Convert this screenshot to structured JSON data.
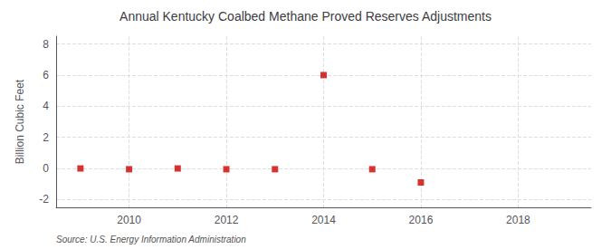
{
  "chart_data": {
    "type": "scatter",
    "title": "Annual Kentucky Coalbed Methane Proved Reserves Adjustments",
    "ylabel": "Billion Cubic Feet",
    "source": "Source: U.S. Energy Information Administration",
    "x": [
      2009,
      2010,
      2011,
      2012,
      2013,
      2014,
      2015,
      2016
    ],
    "values": [
      0.0,
      -0.05,
      0.0,
      -0.05,
      -0.05,
      6.0,
      -0.05,
      -0.9
    ],
    "color": "#cc0000",
    "marker": "square",
    "xlim": [
      2008.5,
      2019.5
    ],
    "ylim": [
      -2.5,
      8.5
    ],
    "xticks": [
      2010,
      2012,
      2014,
      2016,
      2018
    ],
    "yticks": [
      -2,
      0,
      2,
      4,
      6,
      8
    ],
    "grid": true
  }
}
